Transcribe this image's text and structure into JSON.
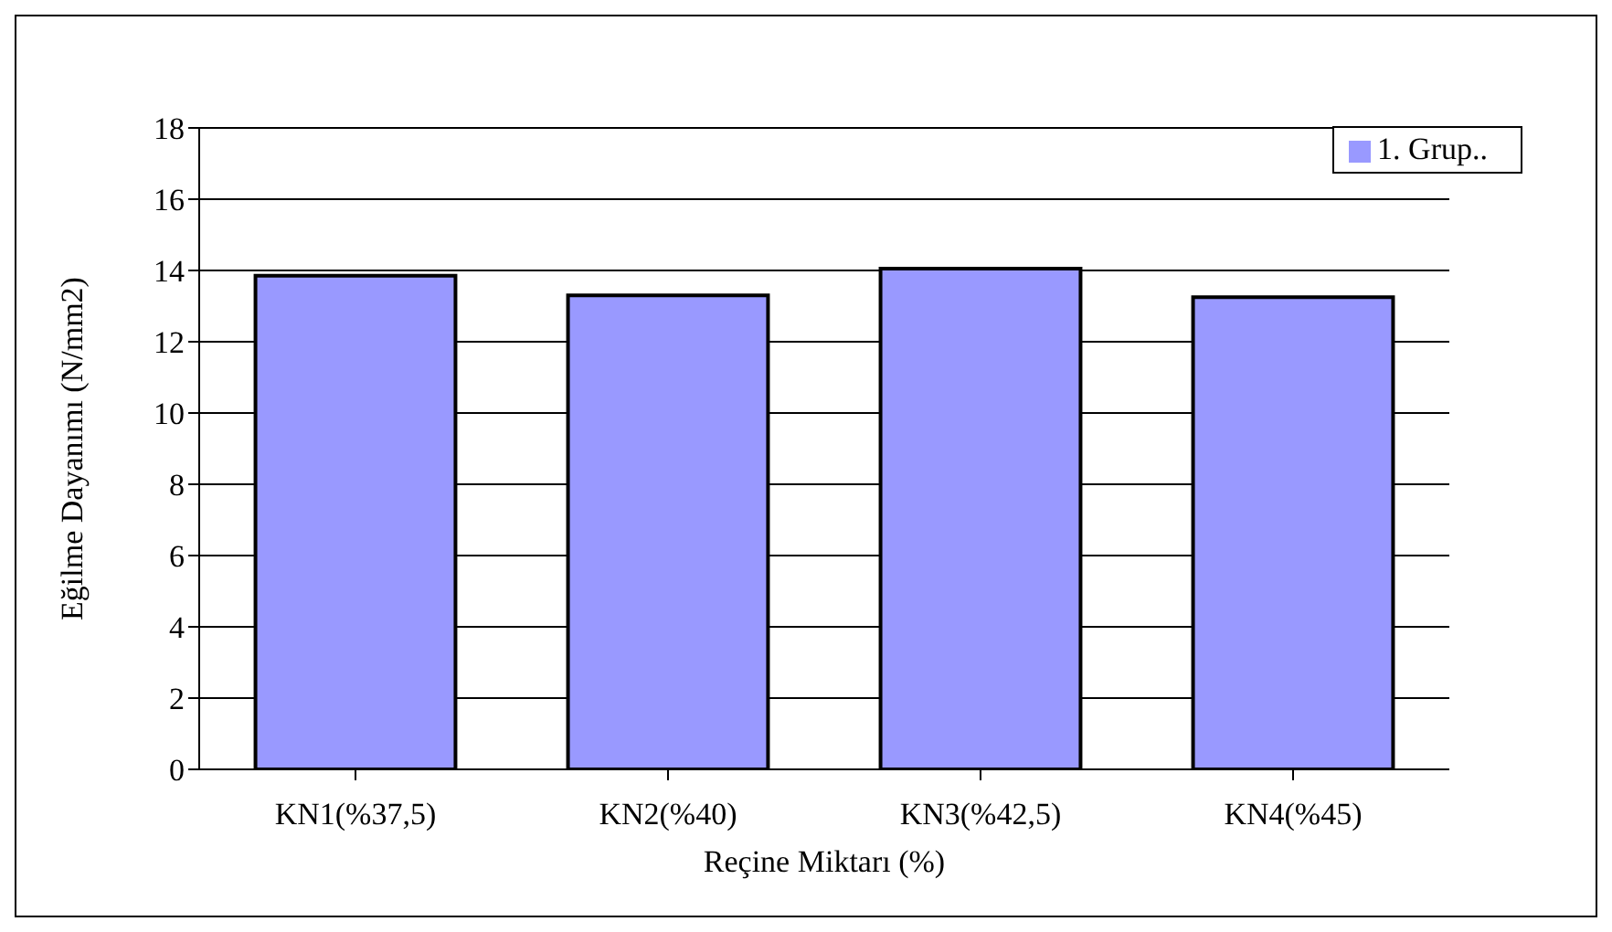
{
  "chart_data": {
    "type": "bar",
    "xlabel": "Reçine Miktarı (%)",
    "ylabel": "Eğilme Dayanımı (N/mm2)",
    "categories": [
      "KN1(%37,5)",
      "KN2(%40)",
      "KN3(%42,5)",
      "KN4(%45)"
    ],
    "series": [
      {
        "name": "1. Grup..",
        "color": "#9999ff",
        "values": [
          13.85,
          13.3,
          14.05,
          13.25
        ]
      }
    ],
    "ylim": [
      0,
      18
    ],
    "yticks": [
      0,
      2,
      4,
      6,
      8,
      10,
      12,
      14,
      16,
      18
    ],
    "grid": "y",
    "legend": "top right"
  }
}
